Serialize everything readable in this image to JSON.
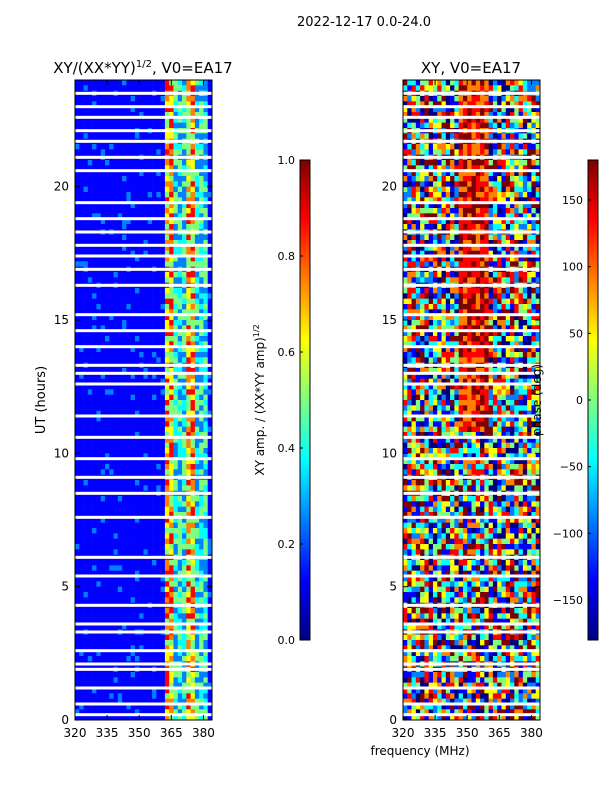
{
  "suptitle": "2022-12-17 0.0-24.0",
  "shared_xlabel": "frequency (MHz)",
  "colors": {
    "jet": [
      "#00007f",
      "#0000ff",
      "#007fff",
      "#00ffff",
      "#7fff7f",
      "#ffff00",
      "#ff7f00",
      "#ff0000",
      "#7f0000"
    ],
    "flag": "#ffffff"
  },
  "chart_data": [
    {
      "type": "heatmap",
      "title": "XY/(XX*YY)",
      "title_exp": "1/2",
      "title_suffix": ", V0=EA17",
      "xlabel": "",
      "ylabel": "UT (hours)",
      "xlim": [
        320,
        384
      ],
      "ylim": [
        0,
        24
      ],
      "xticks": [
        320,
        335,
        350,
        365,
        380
      ],
      "yticks": [
        0,
        5,
        10,
        15,
        20
      ],
      "colorbar": {
        "label": "XY amp. / (XX*YY amp)",
        "label_exp": "1/2",
        "range": [
          0,
          1
        ],
        "ticks": [
          "0.0",
          "0.2",
          "0.4",
          "0.6",
          "0.8",
          "1.0"
        ],
        "tick_values": [
          0.0,
          0.2,
          0.4,
          0.6,
          0.8,
          1.0
        ]
      },
      "flagged_ut_hours": [
        0.2,
        0.6,
        1.2,
        1.9,
        2.1,
        2.6,
        3.3,
        3.6,
        4.3,
        5.4,
        6.1,
        7.6,
        8.5,
        9.1,
        9.8,
        10.6,
        11.4,
        12.6,
        13.0,
        13.3,
        14.0,
        14.6,
        15.2,
        16.3,
        16.9,
        17.4,
        17.8,
        18.3,
        18.8,
        19.4,
        20.6,
        21.1,
        21.7,
        22.1,
        22.6,
        23.0,
        23.5
      ]
    },
    {
      "type": "heatmap",
      "title": "XY, V0=EA17",
      "xlabel": "",
      "ylabel": "",
      "xlim": [
        320,
        384
      ],
      "ylim": [
        0,
        24
      ],
      "xticks": [
        320,
        335,
        350,
        365,
        380
      ],
      "yticks": [
        0,
        5,
        10,
        15,
        20
      ],
      "colorbar": {
        "label": "phase (deg)",
        "range": [
          -180,
          180
        ],
        "ticks": [
          "−150",
          "−100",
          "−50",
          "0",
          "50",
          "100",
          "150"
        ],
        "tick_values": [
          -150,
          -100,
          -50,
          0,
          50,
          100,
          150
        ]
      },
      "flagged_ut_hours": [
        0.2,
        0.6,
        1.2,
        1.9,
        2.1,
        2.6,
        3.3,
        3.6,
        4.3,
        5.4,
        6.1,
        7.6,
        8.5,
        9.1,
        9.8,
        10.6,
        11.4,
        12.6,
        13.0,
        13.3,
        14.0,
        14.6,
        15.2,
        16.3,
        16.9,
        17.4,
        17.8,
        18.3,
        18.8,
        19.4,
        20.6,
        21.1,
        21.7,
        22.1,
        22.6,
        23.0,
        23.5
      ]
    }
  ]
}
